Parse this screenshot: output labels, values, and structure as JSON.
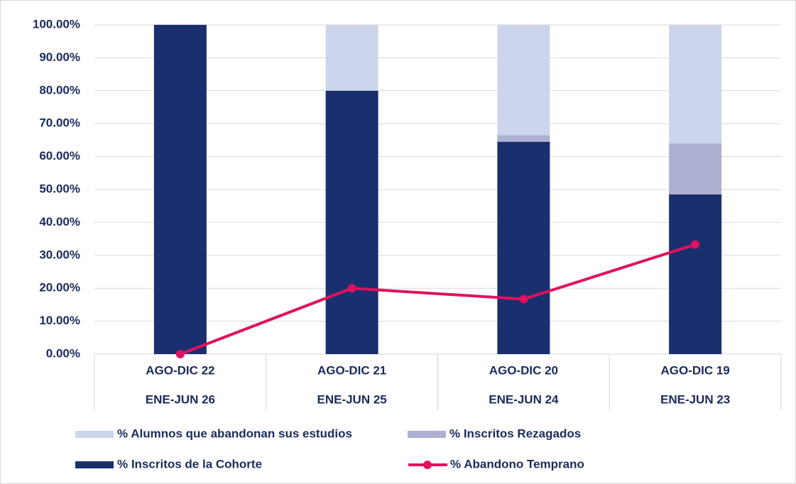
{
  "chart_data": {
    "type": "bar",
    "stacked": true,
    "categories": [
      [
        "AGO-DIC 22",
        "ENE-JUN 26"
      ],
      [
        "AGO-DIC 21",
        "ENE-JUN 25"
      ],
      [
        "AGO-DIC 20",
        "ENE-JUN 24"
      ],
      [
        "AGO-DIC 19",
        "ENE-JUN 23"
      ]
    ],
    "series": [
      {
        "name": "% Inscritos de la Cohorte",
        "color": "#1a2f6e",
        "values": [
          100,
          80,
          64.5,
          48.5
        ]
      },
      {
        "name": "% Inscritos Rezagados",
        "color": "#aeb0d2",
        "values": [
          0,
          0,
          2,
          15.5
        ]
      },
      {
        "name": "% Alumnos que abandonan sus estudios",
        "color": "#ccd5eb",
        "values": [
          0,
          20,
          33.5,
          36
        ]
      },
      {
        "name": "% Abandono Temprano",
        "color": "#e0115f",
        "type": "line",
        "values": [
          0,
          20,
          16.7,
          33.3
        ]
      }
    ],
    "ylim": [
      0,
      100
    ],
    "yticks": [
      {
        "value": 0,
        "label": "0.00%"
      },
      {
        "value": 10,
        "label": "10.00%"
      },
      {
        "value": 20,
        "label": "20.00%"
      },
      {
        "value": 30,
        "label": "30.00%"
      },
      {
        "value": 40,
        "label": "40.00%"
      },
      {
        "value": 50,
        "label": "50.00%"
      },
      {
        "value": 60,
        "label": "60.00%"
      },
      {
        "value": 70,
        "label": "70.00%"
      },
      {
        "value": 80,
        "label": "80.00%"
      },
      {
        "value": 90,
        "label": "90.00%"
      },
      {
        "value": 100,
        "label": "100.00%"
      }
    ],
    "grid": true
  }
}
